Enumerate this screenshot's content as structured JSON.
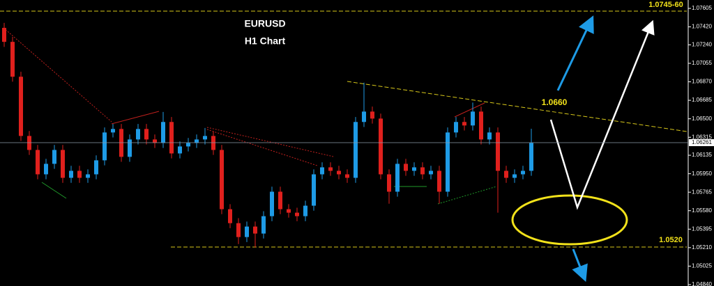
{
  "chart_data": {
    "type": "candlestick",
    "title": "EURUSD",
    "subtitle": "H1 Chart",
    "annotations": [
      "1.0745-60",
      "1.0660",
      "1.0520"
    ],
    "open": [
      1.0741,
      1.0727,
      1.06921,
      1.06328,
      1.06188,
      1.05944,
      1.06049,
      1.06188,
      1.05909,
      1.05979,
      1.05909,
      1.05944,
      1.06084,
      1.06363,
      1.06398,
      1.06119,
      1.06293,
      1.06398,
      1.06293,
      1.06258,
      1.06468,
      1.06153,
      1.06223,
      1.06258,
      1.06293,
      1.06328,
      1.06188,
      1.05595,
      1.05455,
      1.05316,
      1.05421,
      1.05351,
      1.05525,
      1.0577,
      1.05595,
      1.0556,
      1.05525,
      1.0563,
      1.05944,
      1.06014,
      1.05979,
      1.05944,
      1.05909,
      1.06468,
      1.06572,
      1.06502,
      1.05944,
      1.0577,
      1.06049,
      1.05979,
      1.06014,
      1.05944,
      1.05979,
      1.0577,
      1.06363,
      1.06468,
      1.06433,
      1.06572,
      1.06293,
      1.06363,
      1.05979,
      1.05909,
      1.05944,
      1.05979
    ],
    "high": [
      1.0746,
      1.0732,
      1.06971,
      1.06378,
      1.06238,
      1.06099,
      1.06238,
      1.06238,
      1.06029,
      1.06029,
      1.05994,
      1.06134,
      1.06413,
      1.06448,
      1.06448,
      1.06343,
      1.06448,
      1.06448,
      1.06343,
      1.06568,
      1.06518,
      1.06273,
      1.06308,
      1.06343,
      1.06408,
      1.06378,
      1.06238,
      1.05645,
      1.05505,
      1.05471,
      1.05471,
      1.05575,
      1.0582,
      1.0582,
      1.05645,
      1.0561,
      1.0568,
      1.05994,
      1.06064,
      1.06064,
      1.06029,
      1.05994,
      1.06518,
      1.06862,
      1.06622,
      1.06552,
      1.05994,
      1.06099,
      1.06099,
      1.06064,
      1.06064,
      1.06029,
      1.06029,
      1.06413,
      1.06518,
      1.06518,
      1.06662,
      1.06622,
      1.06413,
      1.06413,
      1.06029,
      1.05994,
      1.06029,
      1.064
    ],
    "low": [
      1.0722,
      1.06871,
      1.06278,
      1.06138,
      1.05894,
      1.05894,
      1.05999,
      1.05859,
      1.05859,
      1.05859,
      1.05859,
      1.05894,
      1.06034,
      1.06313,
      1.06069,
      1.06069,
      1.06243,
      1.06243,
      1.06208,
      1.06208,
      1.06103,
      1.06103,
      1.06173,
      1.06208,
      1.06243,
      1.06138,
      1.05545,
      1.05405,
      1.05246,
      1.05266,
      1.05211,
      1.05301,
      1.05475,
      1.05545,
      1.0551,
      1.05475,
      1.05475,
      1.0558,
      1.05894,
      1.05929,
      1.05894,
      1.05859,
      1.05859,
      1.06418,
      1.06452,
      1.05894,
      1.0565,
      1.0572,
      1.05929,
      1.05929,
      1.05894,
      1.05894,
      1.0565,
      1.0572,
      1.06313,
      1.06383,
      1.06383,
      1.06243,
      1.06243,
      1.0556,
      1.05859,
      1.05859,
      1.05894,
      1.05929
    ],
    "close": [
      1.0727,
      1.06921,
      1.06328,
      1.06188,
      1.05944,
      1.06049,
      1.06188,
      1.05909,
      1.05979,
      1.05909,
      1.05944,
      1.06084,
      1.06363,
      1.06398,
      1.06119,
      1.06293,
      1.06398,
      1.06293,
      1.06258,
      1.06468,
      1.06153,
      1.06223,
      1.06258,
      1.06293,
      1.06328,
      1.06188,
      1.05595,
      1.05455,
      1.05316,
      1.05421,
      1.05351,
      1.05525,
      1.0577,
      1.05595,
      1.0556,
      1.05525,
      1.0563,
      1.05944,
      1.06014,
      1.05979,
      1.05944,
      1.05909,
      1.06468,
      1.06572,
      1.06502,
      1.05944,
      1.0577,
      1.06049,
      1.05979,
      1.06014,
      1.05944,
      1.05979,
      1.0577,
      1.06363,
      1.06468,
      1.06433,
      1.06572,
      1.06293,
      1.06363,
      1.05979,
      1.05909,
      1.05944,
      1.05979,
      1.06258
    ],
    "up_color": "#1e9be6",
    "down_color": "#e0201d",
    "last_price": 1.06261,
    "ylim": [
      1.04826,
      1.07689
    ],
    "yticks": [
      1.07605,
      {
        "value": 1.0742,
        "label": "1.07420"
      },
      {
        "value": 1.0724,
        "label": "1.07240"
      },
      1.07055,
      {
        "value": 1.0687,
        "label": "1.06870"
      },
      1.06685,
      {
        "value": 1.065,
        "label": "1.06500"
      },
      1.06315,
      1.06135,
      {
        "value": 1.0595,
        "label": "1.05950"
      },
      1.05765,
      {
        "value": 1.0558,
        "label": "1.05580"
      },
      1.05395,
      {
        "value": 1.0521,
        "label": "1.05210"
      },
      1.05025,
      {
        "value": 1.0484,
        "label": "1.04840"
      }
    ]
  }
}
